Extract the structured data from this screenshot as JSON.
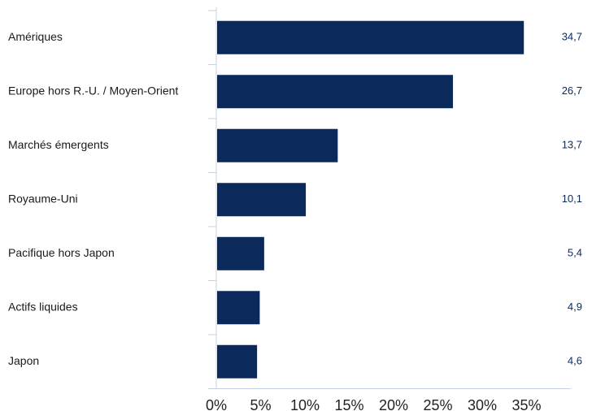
{
  "chart_data": {
    "type": "bar",
    "orientation": "horizontal",
    "categories": [
      "Amériques",
      "Europe hors R.-U. / Moyen-Orient",
      "Marchés émergents",
      "Royaume-Uni",
      "Pacifique hors Japon",
      "Actifs liquides",
      "Japon"
    ],
    "values": [
      34.7,
      26.7,
      13.7,
      10.1,
      5.4,
      4.9,
      4.6
    ],
    "value_labels": [
      "34,7",
      "26,7",
      "13,7",
      "10,1",
      "5,4",
      "4,9",
      "4,6"
    ],
    "xticks": [
      0,
      5,
      10,
      15,
      20,
      25,
      30,
      35
    ],
    "xtick_labels": [
      "0%",
      "5%",
      "10%",
      "15%",
      "20%",
      "25%",
      "30%",
      "35%"
    ],
    "xlim": [
      0,
      40
    ],
    "title": "",
    "xlabel": "",
    "ylabel": "",
    "grid": false,
    "legend": "none",
    "colors": {
      "bar": "#0b2a5b",
      "value_text": "#0b2a5b",
      "axis": "#c9d3e3"
    }
  }
}
